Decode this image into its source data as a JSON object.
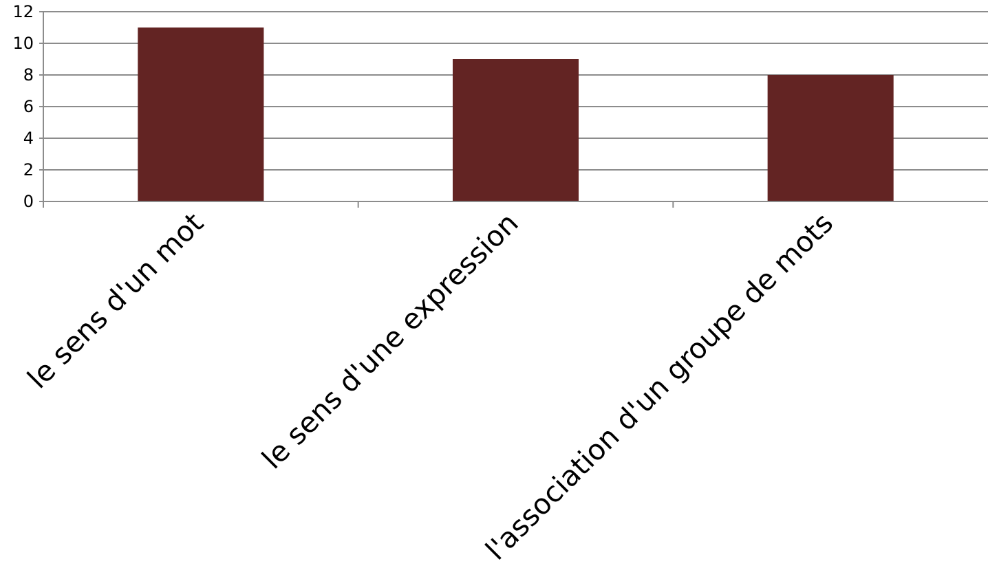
{
  "chart_data": {
    "type": "bar",
    "categories": [
      "le sens d'un mot",
      "le sens d'une expression",
      "l'association d'un groupe de mots"
    ],
    "values": [
      11,
      9,
      8
    ],
    "ylim": [
      0,
      12
    ],
    "yticks": [
      0,
      2,
      4,
      6,
      8,
      10,
      12
    ],
    "grid": true,
    "legend": "none",
    "bar_color": "#632423"
  }
}
